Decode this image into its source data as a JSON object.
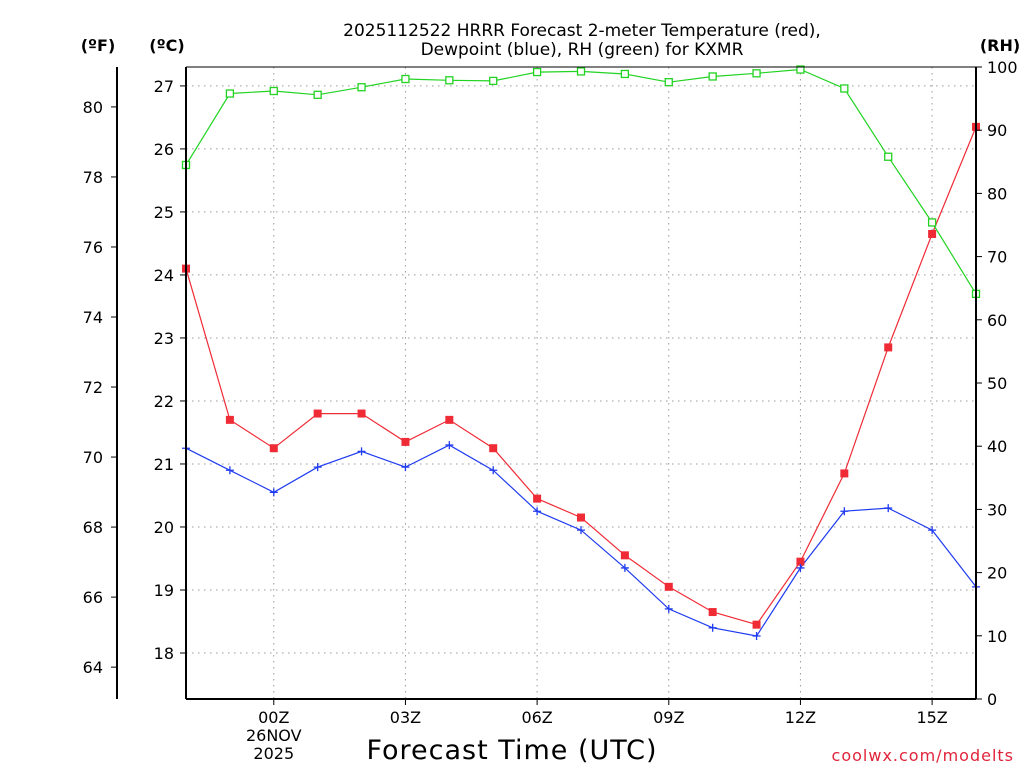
{
  "chart_data": {
    "type": "line",
    "title_line1": "2025112522 HRRR Forecast 2-meter Temperature (red),",
    "title_line2": "Dewpoint (blue), RH (green) for KXMR",
    "xlabel": "Forecast Time (UTC)",
    "credit": "coolwx.com/modelts",
    "unit_f": "(ºF)",
    "unit_c": "(ºC)",
    "unit_rh": "(RH)",
    "x_range": [
      -2,
      16
    ],
    "c_range": [
      17.27,
      27.3
    ],
    "f_range": [
      63.09,
      81.14
    ],
    "rh_range": [
      0,
      100
    ],
    "grid": true,
    "x_ticks": [
      {
        "x": 0,
        "label": "00Z",
        "sub1": "26NOV",
        "sub2": "2025"
      },
      {
        "x": 3,
        "label": "03Z",
        "sub1": "",
        "sub2": ""
      },
      {
        "x": 6,
        "label": "06Z",
        "sub1": "",
        "sub2": ""
      },
      {
        "x": 9,
        "label": "09Z",
        "sub1": "",
        "sub2": ""
      },
      {
        "x": 12,
        "label": "12Z",
        "sub1": "",
        "sub2": ""
      },
      {
        "x": 15,
        "label": "15Z",
        "sub1": "",
        "sub2": ""
      }
    ],
    "c_ticks": [
      {
        "v": 18,
        "label": "18"
      },
      {
        "v": 19,
        "label": "19"
      },
      {
        "v": 20,
        "label": "20"
      },
      {
        "v": 21,
        "label": "21"
      },
      {
        "v": 22,
        "label": "22"
      },
      {
        "v": 23,
        "label": "23"
      },
      {
        "v": 24,
        "label": "24"
      },
      {
        "v": 25,
        "label": "25"
      },
      {
        "v": 26,
        "label": "26"
      },
      {
        "v": 27,
        "label": "27"
      }
    ],
    "f_ticks": [
      {
        "v": 64,
        "label": "64"
      },
      {
        "v": 66,
        "label": "66"
      },
      {
        "v": 68,
        "label": "68"
      },
      {
        "v": 70,
        "label": "70"
      },
      {
        "v": 72,
        "label": "72"
      },
      {
        "v": 74,
        "label": "74"
      },
      {
        "v": 76,
        "label": "76"
      },
      {
        "v": 78,
        "label": "78"
      },
      {
        "v": 80,
        "label": "80"
      }
    ],
    "rh_ticks": [
      {
        "v": 0,
        "label": "0"
      },
      {
        "v": 10,
        "label": "10"
      },
      {
        "v": 20,
        "label": "20"
      },
      {
        "v": 30,
        "label": "30"
      },
      {
        "v": 40,
        "label": "40"
      },
      {
        "v": 50,
        "label": "50"
      },
      {
        "v": 60,
        "label": "60"
      },
      {
        "v": 70,
        "label": "70"
      },
      {
        "v": 80,
        "label": "80"
      },
      {
        "v": 90,
        "label": "90"
      },
      {
        "v": 100,
        "label": "100"
      }
    ],
    "x": [
      -2,
      -1,
      0,
      1,
      2,
      3,
      4,
      5,
      6,
      7,
      8,
      9,
      10,
      11,
      12,
      13,
      14,
      15,
      16
    ],
    "series": [
      {
        "name": "Temperature",
        "axis": "c",
        "color": "#ef2b36",
        "marker": "filled-square",
        "values": [
          24.1,
          21.7,
          21.25,
          21.8,
          21.8,
          21.35,
          21.7,
          21.25,
          20.45,
          20.15,
          19.55,
          19.05,
          18.65,
          18.45,
          19.45,
          20.85,
          22.85,
          24.65,
          26.35
        ]
      },
      {
        "name": "Dewpoint",
        "axis": "c",
        "color": "#1f3bf0",
        "marker": "plus",
        "values": [
          21.25,
          20.9,
          20.55,
          20.95,
          21.2,
          20.95,
          21.3,
          20.9,
          20.25,
          19.95,
          19.35,
          18.7,
          18.4,
          18.27,
          19.35,
          20.25,
          20.3,
          19.95,
          19.05
        ]
      },
      {
        "name": "RH",
        "axis": "rh",
        "color": "#22d322",
        "marker": "open-square",
        "values": [
          84.5,
          95.8,
          96.2,
          95.6,
          96.8,
          98.1,
          97.9,
          97.8,
          99.2,
          99.3,
          98.9,
          97.6,
          98.5,
          99,
          99.6,
          96.6,
          85.8,
          75.4,
          64.1
        ]
      }
    ]
  }
}
